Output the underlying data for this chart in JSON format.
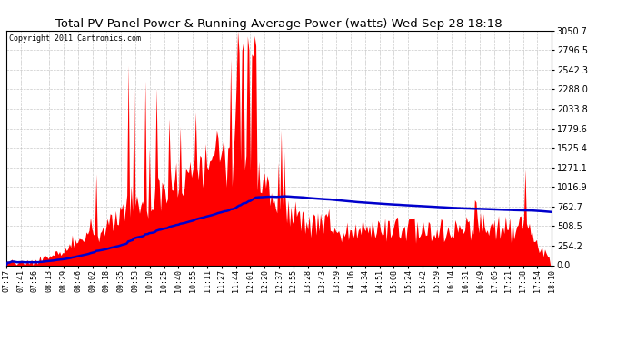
{
  "title": "Total PV Panel Power & Running Average Power (watts) Wed Sep 28 18:18",
  "copyright": "Copyright 2011 Cartronics.com",
  "yticks": [
    0.0,
    254.2,
    508.5,
    762.7,
    1016.9,
    1271.1,
    1525.4,
    1779.6,
    2033.8,
    2288.0,
    2542.3,
    2796.5,
    3050.7
  ],
  "ymax": 3050.7,
  "ymin": 0.0,
  "fill_color": "#FF0000",
  "line_color": "#0000CC",
  "bg_color": "#FFFFFF",
  "grid_color": "#BBBBBB",
  "title_color": "#000000",
  "copyright_color": "#000000",
  "xtick_labels": [
    "07:17",
    "07:41",
    "07:56",
    "08:13",
    "08:29",
    "08:46",
    "09:02",
    "09:18",
    "09:35",
    "09:53",
    "10:10",
    "10:25",
    "10:40",
    "10:55",
    "11:11",
    "11:27",
    "11:44",
    "12:01",
    "12:20",
    "12:37",
    "12:55",
    "13:28",
    "13:43",
    "13:59",
    "14:16",
    "14:34",
    "14:51",
    "15:08",
    "15:24",
    "15:42",
    "15:59",
    "16:14",
    "16:31",
    "16:49",
    "17:05",
    "17:21",
    "17:38",
    "17:54",
    "18:10"
  ],
  "num_points": 390,
  "figwidth": 6.9,
  "figheight": 3.75,
  "dpi": 100
}
